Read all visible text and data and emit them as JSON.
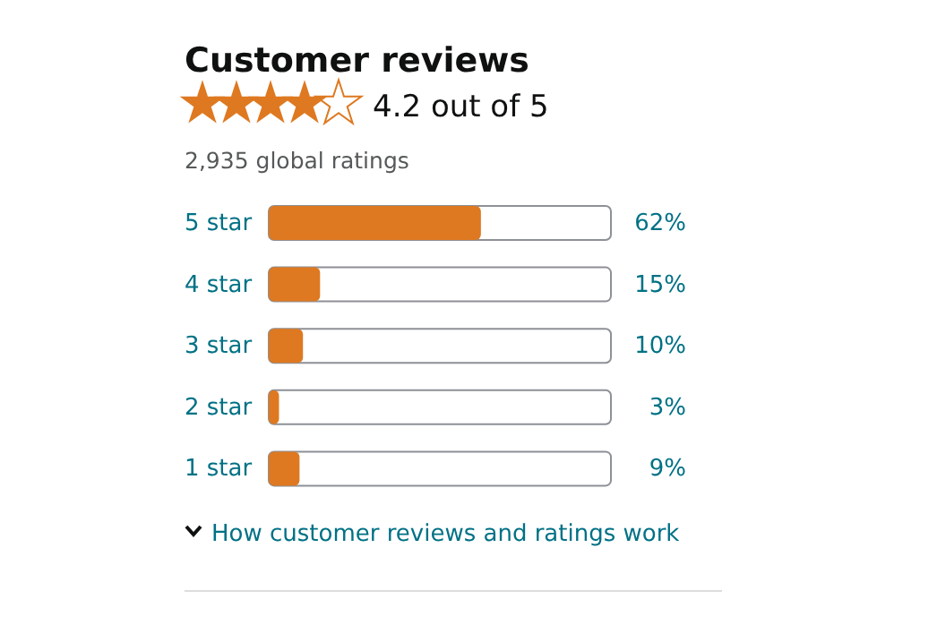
{
  "chart_data": {
    "type": "bar",
    "orientation": "horizontal",
    "title": "Customer reviews",
    "categories": [
      "5 star",
      "4 star",
      "3 star",
      "2 star",
      "1 star"
    ],
    "values": [
      62,
      15,
      10,
      3,
      9
    ],
    "color": "#de7921",
    "xlim": [
      0,
      100
    ],
    "value_labels": [
      "62%",
      "15%",
      "10%",
      "3%",
      "9%"
    ],
    "annotations": [
      "4.2 out of 5",
      "2,935 global ratings",
      "How customer reviews and ratings work"
    ]
  }
}
